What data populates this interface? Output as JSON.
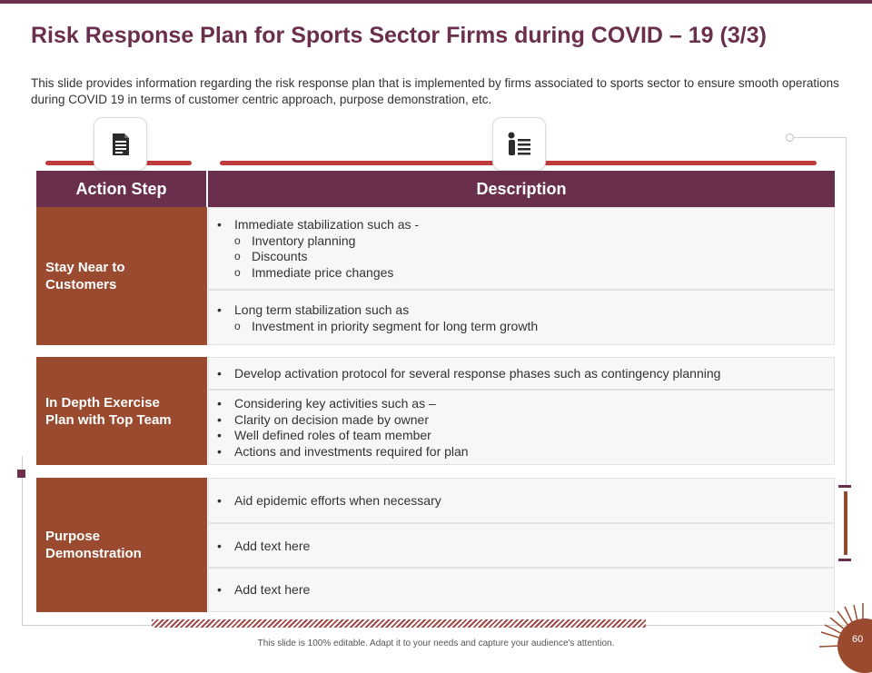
{
  "title": "Risk Response Plan for Sports Sector Firms during COVID – 19 (3/3)",
  "subtitle": "This slide provides information regarding the risk response plan that is implemented by firms associated to sports sector to ensure smooth operations during COVID 19 in terms of customer centric approach, purpose demonstration, etc.",
  "icons": {
    "left": "document-icon",
    "right": "presenter-list-icon"
  },
  "table": {
    "headers": {
      "action": "Action Step",
      "description": "Description"
    },
    "rows": [
      {
        "step": "Stay Near to Customers",
        "cells": [
          {
            "bullet": "Immediate stabilization such as -",
            "subs": [
              "Inventory planning",
              "Discounts",
              "Immediate price changes"
            ]
          },
          {
            "bullet": "Long term stabilization such as",
            "subs": [
              "Investment in priority segment for long term growth"
            ]
          }
        ]
      },
      {
        "step": "In Depth Exercise Plan with Top Team",
        "cells": [
          {
            "bullets": [
              "Develop activation protocol for several response phases such as contingency planning"
            ]
          },
          {
            "bullets": [
              "Considering key activities such as –",
              "Clarity on decision made by owner",
              "Well defined roles of team member",
              "Actions and investments required for plan"
            ]
          }
        ]
      },
      {
        "step": "Purpose Demonstration",
        "cells": [
          {
            "bullets": [
              "Aid epidemic efforts when necessary"
            ]
          },
          {
            "bullets": [
              "Add text here"
            ]
          },
          {
            "bullets": [
              "Add text here"
            ]
          }
        ]
      }
    ]
  },
  "footer": "This slide is 100% editable. Adapt it to your needs and capture your audience's attention.",
  "page_number": "60",
  "colors": {
    "primary": "#6b2f4e",
    "accent": "#9a4a2e",
    "bar": "#c0393b"
  }
}
